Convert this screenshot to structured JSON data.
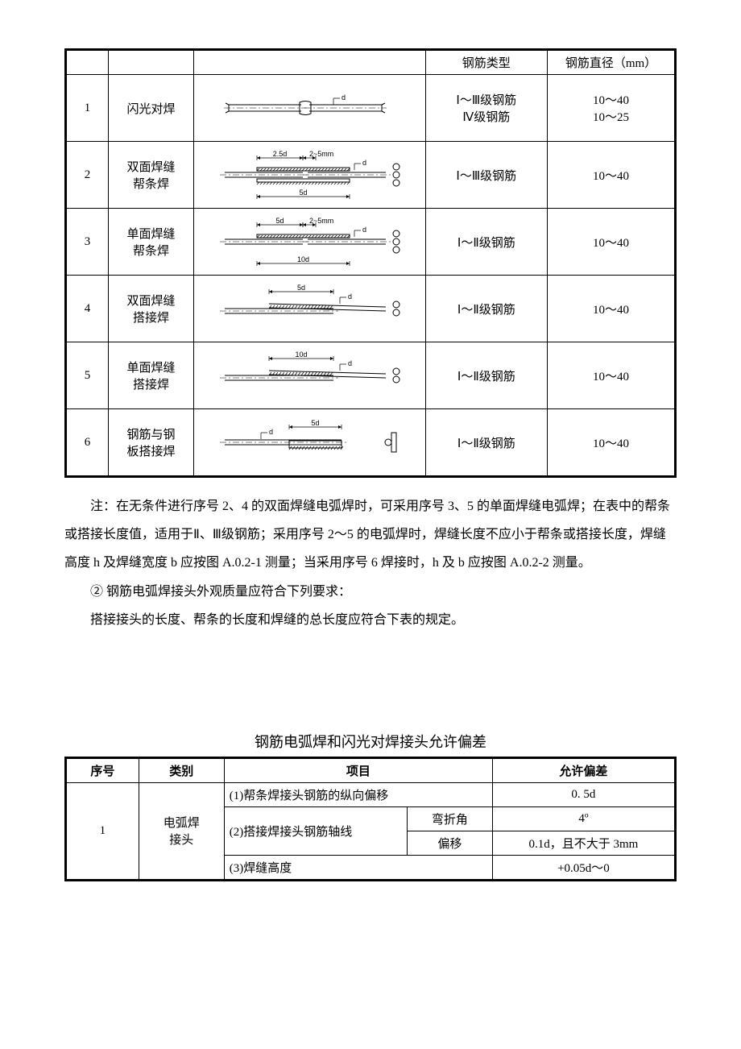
{
  "table1": {
    "headers": {
      "rebar_type": "钢筋类型",
      "diameter": "钢筋直径（mm）"
    },
    "rows": [
      {
        "num": "1",
        "name": "闪光对焊",
        "rebar_type": "Ⅰ～Ⅲ级钢筋\nⅣ级钢筋",
        "diameter": "10～40\n10～25",
        "diagram": {
          "kind": "flash",
          "dlabel": "d"
        }
      },
      {
        "num": "2",
        "name": "双面焊缝帮条焊",
        "rebar_type": "Ⅰ～Ⅲ级钢筋",
        "diameter": "10～40",
        "diagram": {
          "kind": "splice_double",
          "top": "2.5d",
          "gap": "2~5mm",
          "bottom": "5d",
          "dlabel": "d"
        }
      },
      {
        "num": "3",
        "name": "单面焊缝帮条焊",
        "rebar_type": "Ⅰ～Ⅱ级钢筋",
        "diameter": "10～40",
        "diagram": {
          "kind": "splice_single",
          "top": "5d",
          "gap": "2~5mm",
          "bottom": "10d",
          "dlabel": "d"
        }
      },
      {
        "num": "4",
        "name": "双面焊缝搭接焊",
        "rebar_type": "Ⅰ～Ⅱ级钢筋",
        "diameter": "10～40",
        "diagram": {
          "kind": "lap",
          "len": "5d",
          "dlabel": "d",
          "section": "single"
        }
      },
      {
        "num": "5",
        "name": "单面焊缝搭接焊",
        "rebar_type": "Ⅰ～Ⅱ级钢筋",
        "diameter": "10～40",
        "diagram": {
          "kind": "lap",
          "len": "10d",
          "dlabel": "d",
          "section": "single"
        }
      },
      {
        "num": "6",
        "name": "钢筋与钢板搭接焊",
        "rebar_type": "Ⅰ～Ⅱ级钢筋",
        "diameter": "10～40",
        "diagram": {
          "kind": "plate",
          "len": "5d",
          "dlabel": "d"
        }
      }
    ]
  },
  "notes": {
    "p1": "注：在无条件进行序号 2、4 的双面焊缝电弧焊时，可采用序号 3、5 的单面焊缝电弧焊；在表中的帮条或搭接长度值，适用于Ⅱ、Ⅲ级钢筋；采用序号 2～5 的电弧焊时，焊缝长度不应小于帮条或搭接长度，焊缝高度 h 及焊缝宽度 b 应按图 A.0.2-1 测量；当采用序号 6 焊接时，h 及 b 应按图 A.0.2-2 测量。",
    "p2": "② 钢筋电弧焊接头外观质量应符合下列要求：",
    "p3": "搭接接头的长度、帮条的长度和焊缝的总长度应符合下表的规定。"
  },
  "table2": {
    "title": "钢筋电弧焊和闪光对焊接头允许偏差",
    "headers": {
      "num": "序号",
      "cat": "类别",
      "item": "项目",
      "dev": "允许偏差"
    },
    "body": {
      "num": "1",
      "cat": "电弧焊接头",
      "r1_item": "(1)帮条焊接头钢筋的纵向偏移",
      "r1_dev": "0. 5d",
      "r2_item": "(2)搭接焊接头钢筋轴线",
      "r2a_sub": "弯折角",
      "r2a_dev": "4º",
      "r2b_sub": "偏移",
      "r2b_dev": "0.1d，且不大于 3mm",
      "r3_item": "(3)焊缝高度",
      "r3_dev": "+0.05d～0"
    }
  }
}
